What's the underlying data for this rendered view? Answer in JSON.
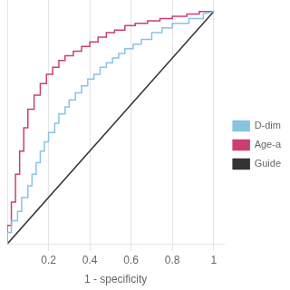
{
  "chart_data": {
    "type": "line",
    "xlabel": "1 - specificity",
    "xlim": [
      0.0,
      1.05
    ],
    "ylim": [
      0.0,
      1.05
    ],
    "xticks": [
      0.2,
      0.4,
      0.6,
      0.8,
      1.0
    ],
    "yticks": [],
    "grid": true,
    "legend": "right",
    "tick_labels": "x",
    "series": [
      {
        "name": "D-dim",
        "color": "#88c4e0",
        "x": [
          0.0,
          0.0,
          0.02,
          0.02,
          0.05,
          0.05,
          0.07,
          0.07,
          0.1,
          0.1,
          0.12,
          0.12,
          0.14,
          0.14,
          0.16,
          0.16,
          0.18,
          0.18,
          0.2,
          0.2,
          0.23,
          0.23,
          0.25,
          0.25,
          0.28,
          0.28,
          0.3,
          0.3,
          0.33,
          0.33,
          0.36,
          0.36,
          0.39,
          0.39,
          0.42,
          0.42,
          0.45,
          0.45,
          0.48,
          0.48,
          0.51,
          0.51,
          0.54,
          0.54,
          0.57,
          0.57,
          0.61,
          0.61,
          0.65,
          0.65,
          0.7,
          0.7,
          0.75,
          0.75,
          0.8,
          0.8,
          0.88,
          0.88,
          0.95,
          0.95,
          1.0
        ],
        "values": [
          0.0,
          0.05,
          0.05,
          0.1,
          0.1,
          0.14,
          0.14,
          0.2,
          0.2,
          0.25,
          0.25,
          0.3,
          0.3,
          0.35,
          0.35,
          0.4,
          0.4,
          0.44,
          0.44,
          0.48,
          0.48,
          0.52,
          0.52,
          0.56,
          0.56,
          0.59,
          0.59,
          0.62,
          0.62,
          0.65,
          0.65,
          0.68,
          0.68,
          0.71,
          0.71,
          0.73,
          0.73,
          0.76,
          0.76,
          0.78,
          0.78,
          0.8,
          0.8,
          0.82,
          0.82,
          0.84,
          0.84,
          0.86,
          0.86,
          0.88,
          0.88,
          0.91,
          0.91,
          0.93,
          0.93,
          0.95,
          0.95,
          0.97,
          0.97,
          0.99,
          1.0
        ]
      },
      {
        "name": "Age-a",
        "color": "#c94070",
        "x": [
          0.0,
          0.0,
          0.02,
          0.02,
          0.04,
          0.04,
          0.06,
          0.06,
          0.08,
          0.08,
          0.1,
          0.1,
          0.13,
          0.13,
          0.16,
          0.16,
          0.19,
          0.19,
          0.22,
          0.22,
          0.25,
          0.25,
          0.28,
          0.28,
          0.32,
          0.32,
          0.36,
          0.36,
          0.4,
          0.4,
          0.44,
          0.44,
          0.48,
          0.48,
          0.52,
          0.52,
          0.57,
          0.57,
          0.62,
          0.62,
          0.68,
          0.68,
          0.74,
          0.74,
          0.8,
          0.8,
          0.87,
          0.87,
          0.93,
          0.93,
          1.0
        ],
        "values": [
          0.0,
          0.08,
          0.08,
          0.18,
          0.18,
          0.3,
          0.3,
          0.4,
          0.4,
          0.5,
          0.5,
          0.58,
          0.58,
          0.64,
          0.64,
          0.69,
          0.69,
          0.73,
          0.73,
          0.76,
          0.76,
          0.79,
          0.79,
          0.81,
          0.81,
          0.83,
          0.83,
          0.85,
          0.85,
          0.87,
          0.87,
          0.89,
          0.89,
          0.91,
          0.91,
          0.92,
          0.92,
          0.94,
          0.94,
          0.95,
          0.95,
          0.96,
          0.96,
          0.97,
          0.97,
          0.98,
          0.98,
          0.99,
          0.99,
          1.0,
          1.0
        ]
      },
      {
        "name": "Guide",
        "color": "#333333",
        "x": [
          0,
          1
        ],
        "values": [
          0,
          1
        ]
      }
    ]
  }
}
